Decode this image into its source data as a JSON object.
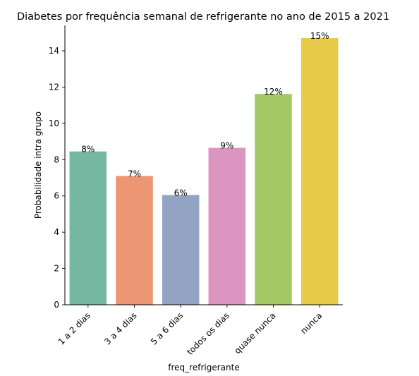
{
  "chart_data": {
    "type": "bar",
    "title": "Diabetes por frequência semanal de refrigerante no ano de 2015 a 2021",
    "xlabel": "freq_refrigerante",
    "ylabel": "Probabilidade intra grupo",
    "categories": [
      "1 a 2 dias",
      "3 a 4 dias",
      "5 a 6 dias",
      "todos os dias",
      "quase nunca",
      "nunca"
    ],
    "values": [
      8.45,
      7.1,
      6.05,
      8.65,
      11.62,
      14.7
    ],
    "data_labels": [
      "8%",
      "7%",
      "6%",
      "9%",
      "12%",
      "15%"
    ],
    "colors": [
      "#76b7a2",
      "#ec9673",
      "#93a3c4",
      "#dc94c1",
      "#a2c965",
      "#e6cb48"
    ],
    "ylim": [
      0,
      15.4
    ],
    "yticks": [
      0,
      2,
      4,
      6,
      8,
      10,
      12,
      14
    ],
    "grid": false,
    "legend": "none"
  }
}
